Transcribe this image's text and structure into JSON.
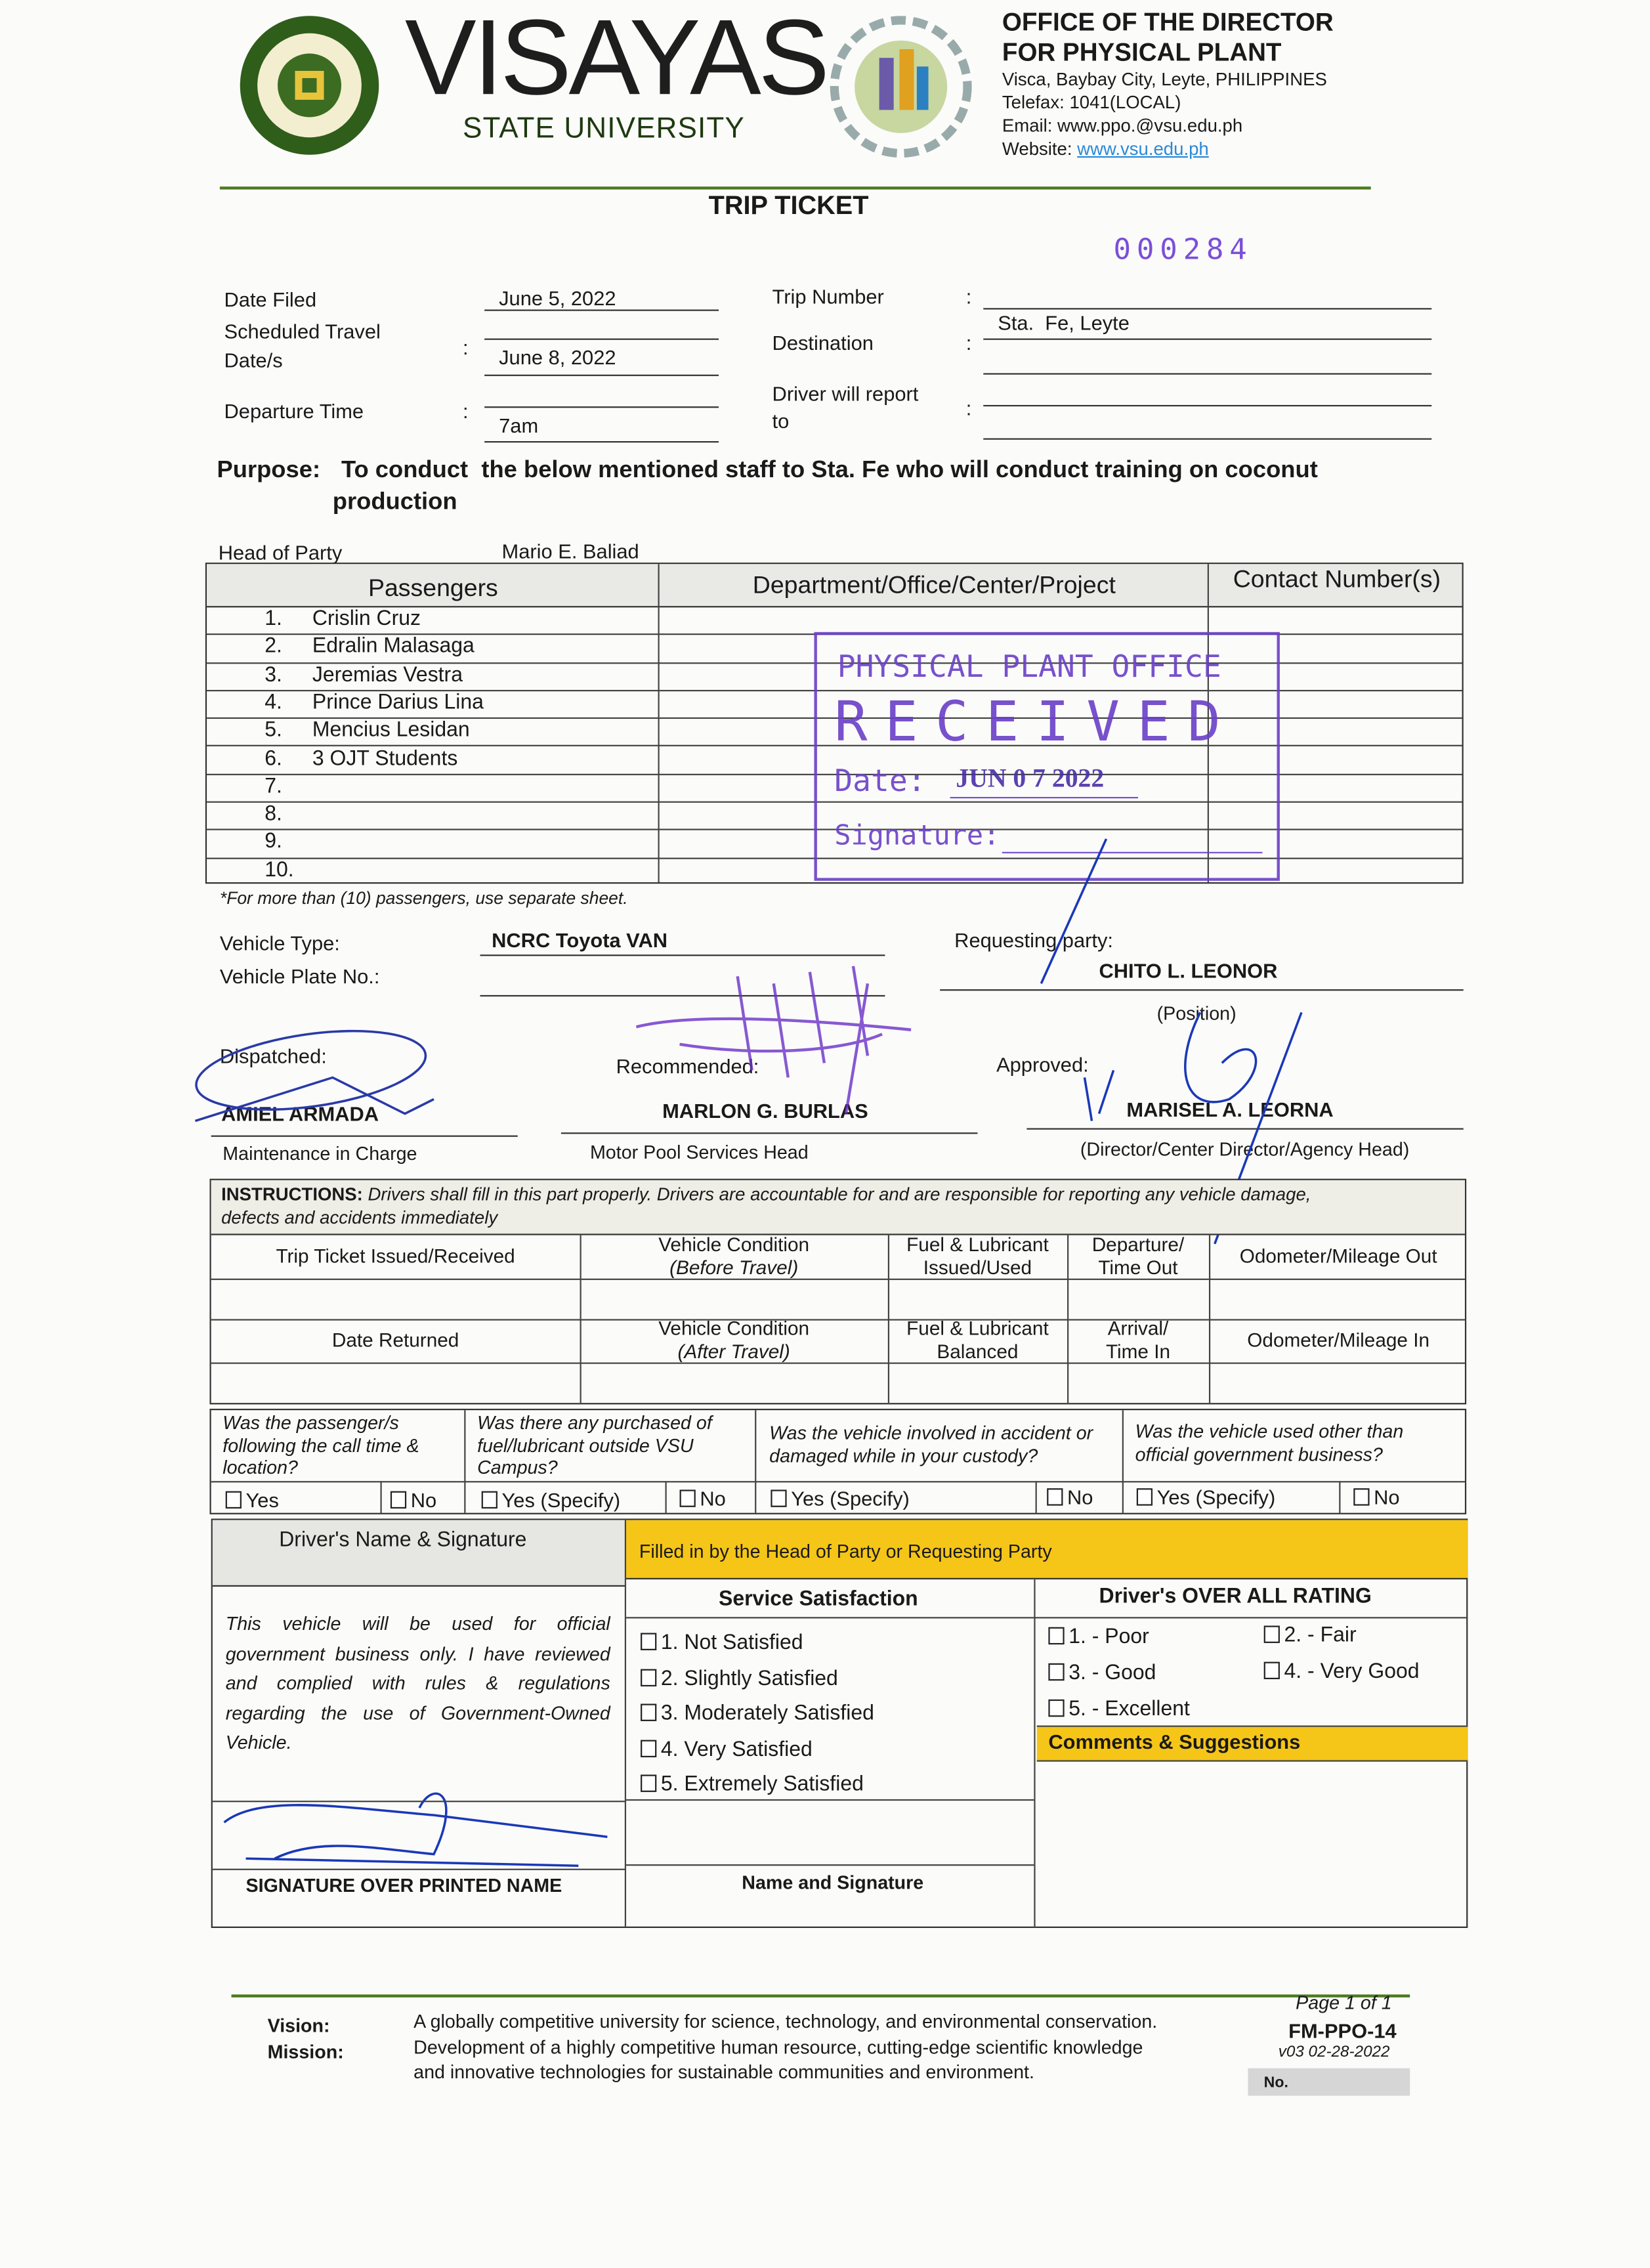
{
  "header": {
    "seal_text": "VISAYAS STATE UNIVERSITY",
    "university_name": "VISAYAS",
    "university_sub": "STATE UNIVERSITY",
    "office_logo_text": "PHYSICAL PLANT OFFICE",
    "office_line1": "OFFICE OF THE DIRECTOR",
    "office_line2": "FOR PHYSICAL PLANT",
    "address": "Visca, Baybay City, Leyte, PHILIPPINES",
    "telefax": "Telefax: 1041(LOCAL)",
    "email": "Email: www.ppo.@vsu.edu.ph",
    "website_label": "Website: ",
    "website": "www.vsu.edu.ph",
    "green_color": "#4a7a1e"
  },
  "title": "TRIP TICKET",
  "serial_number": "000284",
  "fields": {
    "date_filed_label": "Date Filed",
    "date_filed": "June 5, 2022",
    "scheduled_label_1": "Scheduled Travel",
    "scheduled_label_2": "Date/s",
    "scheduled_date": "June 8, 2022",
    "departure_label": "Departure Time",
    "departure": "7am",
    "trip_number_label": "Trip Number",
    "trip_number": "",
    "destination_label": "Destination",
    "destination": "Sta.  Fe, Leyte",
    "report_label_1": "Driver will report",
    "report_label_2": "to",
    "report_to": "",
    "colon": ":"
  },
  "purpose": {
    "label": "Purpose:",
    "line1": "To conduct  the below mentioned staff to Sta. Fe who will conduct training on coconut",
    "line2": "production"
  },
  "head_of_party": {
    "label": "Head of Party",
    "value": "Mario E. Baliad"
  },
  "passengers": {
    "headers": [
      "Passengers",
      "Department/Office/Center/Project",
      "Contact Number(s)"
    ],
    "rows": [
      {
        "no": "1.",
        "name": "Crislin Cruz"
      },
      {
        "no": "2.",
        "name": "Edralin Malasaga"
      },
      {
        "no": "3.",
        "name": "Jeremias Vestra"
      },
      {
        "no": "4.",
        "name": "Prince Darius Lina"
      },
      {
        "no": "5.",
        "name": "Mencius Lesidan"
      },
      {
        "no": "6.",
        "name": "3 OJT Students"
      },
      {
        "no": "7.",
        "name": ""
      },
      {
        "no": "8.",
        "name": ""
      },
      {
        "no": "9.",
        "name": ""
      },
      {
        "no": "10.",
        "name": ""
      }
    ],
    "note": "*For more than (10) passengers, use separate sheet."
  },
  "stamp": {
    "office": "PHYSICAL PLANT OFFICE",
    "received": "RECEIVED",
    "date_label": "Date:",
    "date": "JUN 0 7 2022",
    "signature_label": "Signature:",
    "color": "#6a3fc8"
  },
  "vehicle": {
    "type_label": "Vehicle Type:",
    "type": "NCRC Toyota VAN",
    "plate_label": "Vehicle Plate No.:",
    "plate": ""
  },
  "requesting": {
    "label": "Requesting party:",
    "name": "CHITO L. LEONOR",
    "position": "(Position)"
  },
  "signatories": [
    {
      "label": "Dispatched:",
      "name": "AMIEL ARMADA",
      "title": "Maintenance in Charge"
    },
    {
      "label": "Recommended:",
      "name": "MARLON G. BURLAS",
      "title": "Motor Pool Services Head"
    },
    {
      "label": "Approved:",
      "name": "MARISEL A. LEORNA",
      "title": "(Director/Center Director/Agency Head)"
    }
  ],
  "instructions": {
    "label": "INSTRUCTIONS:",
    "text": " Drivers shall fill in this part properly.  Drivers are accountable for and are responsible for reporting any vehicle damage,",
    "text2": "defects and accidents immediately",
    "out_headers": [
      "Trip Ticket Issued/Received",
      "Vehicle Condition",
      "(Before Travel)",
      "Fuel & Lubricant",
      "Issued/Used",
      "Departure/",
      "Time Out",
      "Odometer/Mileage Out"
    ],
    "in_headers": [
      "Date Returned",
      "Vehicle Condition",
      "(After Travel)",
      "Fuel & Lubricant",
      "Balanced",
      "Arrival/",
      "Time In",
      "Odometer/Mileage In"
    ]
  },
  "questions": [
    {
      "q": "Was the passenger/s following the call time & location?",
      "yes": "Yes",
      "no": "No"
    },
    {
      "q": "Was there any purchased of fuel/lubricant outside VSU Campus?",
      "yes": "Yes (Specify)",
      "no": "No"
    },
    {
      "q": "Was the vehicle involved in accident or damaged while in your custody?",
      "yes": "Yes (Specify)",
      "no": "No"
    },
    {
      "q": "Was the vehicle used other than official government business?",
      "yes": "Yes (Specify)",
      "no": "No"
    }
  ],
  "driver": {
    "header": "Driver's Name & Signature",
    "statement": "This vehicle will be used for official government business only. I have reviewed and complied with rules & regulations regarding the use of Government-Owned Vehicle.",
    "signature_caption": "SIGNATURE OVER PRINTED NAME"
  },
  "head_section": {
    "header": "Filled in by the Head of Party or Requesting Party",
    "yellow": "#f5c518",
    "service_title": "Service Satisfaction",
    "service_options": [
      "1.  Not Satisfied",
      "2.  Slightly Satisfied",
      "3.  Moderately Satisfied",
      "4.  Very Satisfied",
      "5.  Extremely Satisfied"
    ],
    "rating_title": "Driver's OVER ALL RATING",
    "rating_options": [
      "1. - Poor",
      "2. - Fair",
      "3. - Good",
      "4. - Very Good",
      "5. - Excellent"
    ],
    "comments_title": "Comments & Suggestions",
    "name_signature": "Name and Signature"
  },
  "footer": {
    "vision_label": "Vision:",
    "vision": "A globally competitive university for science, technology, and environmental conservation.",
    "mission_label": "Mission:",
    "mission1": "Development of a highly competitive human resource, cutting-edge scientific knowledge",
    "mission2": "and innovative technologies for sustainable communities and environment.",
    "page": "Page 1 of 1",
    "form_code": "FM-PPO-14",
    "version": "v03 02-28-2022",
    "no_label": "No."
  }
}
